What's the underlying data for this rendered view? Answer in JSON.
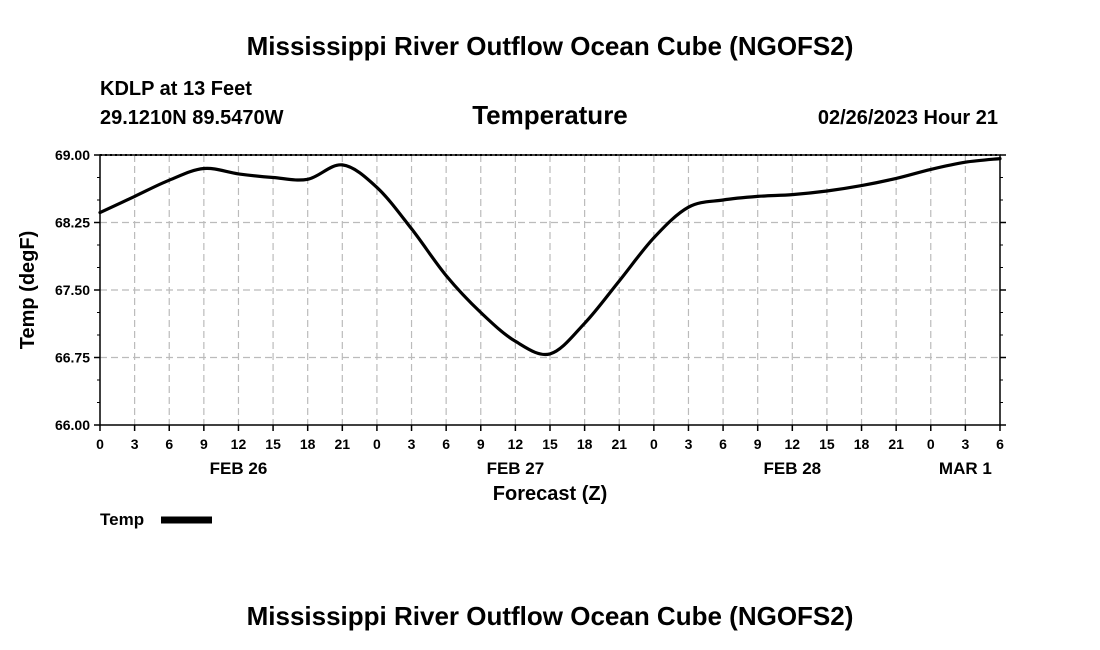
{
  "header": {
    "title": "Mississippi River Outflow Ocean Cube (NGOFS2)",
    "station": "KDLP at 13 Feet",
    "coords": "29.1210N  89.5470W",
    "datetime": "02/26/2023 Hour 21"
  },
  "footer": {
    "title": "Mississippi River Outflow Ocean Cube (NGOFS2)"
  },
  "chart_data": {
    "type": "line",
    "title": "Temperature",
    "xlabel": "Forecast (Z)",
    "ylabel": "Temp (degF)",
    "ylim": [
      66.0,
      69.0
    ],
    "xlim": [
      0,
      78
    ],
    "x_unit": "hours from 02/26/2023 00Z",
    "yticks": [
      "66.00",
      "66.75",
      "67.50",
      "68.25",
      "69.00"
    ],
    "ytick_values": [
      66.0,
      66.75,
      67.5,
      68.25,
      69.0
    ],
    "xtick_hours": [
      0,
      3,
      6,
      9,
      12,
      15,
      18,
      21,
      24,
      27,
      30,
      33,
      36,
      39,
      42,
      45,
      48,
      51,
      54,
      57,
      60,
      63,
      66,
      69,
      72,
      75,
      78
    ],
    "xtick_labels": [
      "0",
      "3",
      "6",
      "9",
      "12",
      "15",
      "18",
      "21",
      "0",
      "3",
      "6",
      "9",
      "12",
      "15",
      "18",
      "21",
      "0",
      "3",
      "6",
      "9",
      "12",
      "15",
      "18",
      "21",
      "0",
      "3",
      "6"
    ],
    "day_labels": [
      {
        "hour": 12,
        "label": "FEB 26"
      },
      {
        "hour": 36,
        "label": "FEB 27"
      },
      {
        "hour": 60,
        "label": "FEB 28"
      },
      {
        "hour": 75,
        "label": "MAR 1"
      }
    ],
    "grid": true,
    "legend": "bottom-left",
    "series": [
      {
        "name": "Temp",
        "color": "#000000",
        "x": [
          0,
          3,
          6,
          9,
          12,
          15,
          18,
          21,
          24,
          27,
          30,
          33,
          36,
          39,
          42,
          45,
          48,
          51,
          54,
          57,
          60,
          63,
          66,
          69,
          72,
          75,
          78
        ],
        "values": [
          68.36,
          68.54,
          68.72,
          68.85,
          68.79,
          68.75,
          68.73,
          68.89,
          68.64,
          68.18,
          67.66,
          67.25,
          66.93,
          66.79,
          67.13,
          67.6,
          68.08,
          68.42,
          68.5,
          68.54,
          68.56,
          68.6,
          68.66,
          68.74,
          68.84,
          68.92,
          68.96
        ]
      }
    ]
  }
}
